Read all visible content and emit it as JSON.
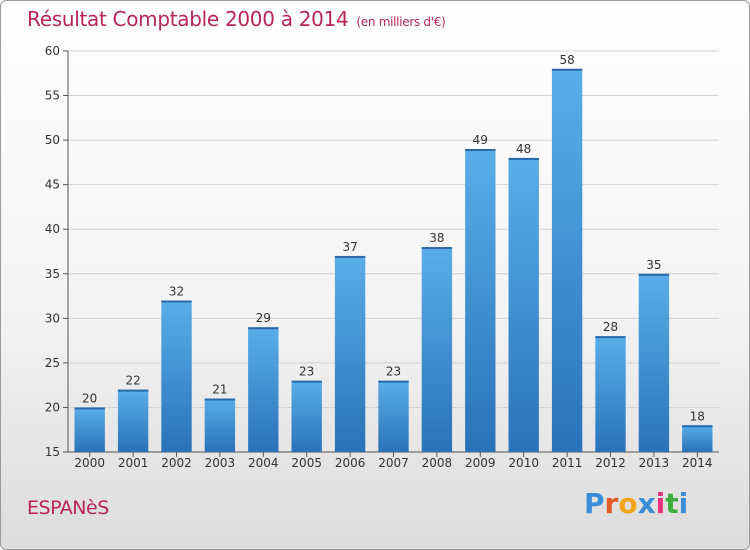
{
  "header": {
    "title": "Résultat Comptable 2000 à 2014",
    "subtitle": "(en milliers d'€)"
  },
  "footer": {
    "commune": "ESPANèS",
    "logo_letters": [
      "P",
      "r",
      "o",
      "x",
      "i",
      "t",
      "i"
    ],
    "logo_colors": [
      "#3a8ed8",
      "#e35a2a",
      "#f2a51c",
      "#3a8ed8",
      "#e8317c",
      "#3fae3f",
      "#3a8ed8"
    ]
  },
  "chart_data": {
    "type": "bar",
    "title": "Résultat Comptable 2000 à 2014",
    "subtitle": "(en milliers d'€)",
    "categories": [
      "2000",
      "2001",
      "2002",
      "2003",
      "2004",
      "2005",
      "2006",
      "2007",
      "2008",
      "2009",
      "2010",
      "2011",
      "2012",
      "2013",
      "2014"
    ],
    "values": [
      20,
      22,
      32,
      21,
      29,
      23,
      37,
      23,
      38,
      49,
      48,
      58,
      28,
      35,
      18
    ],
    "ylim": [
      15,
      60
    ],
    "yticks": [
      15,
      20,
      25,
      30,
      35,
      40,
      45,
      50,
      55,
      60
    ],
    "grid": true,
    "bar_color": "#3d8fd6",
    "bar_color_light": "#5aaee8",
    "bar_color_dark": "#2a72b8"
  }
}
